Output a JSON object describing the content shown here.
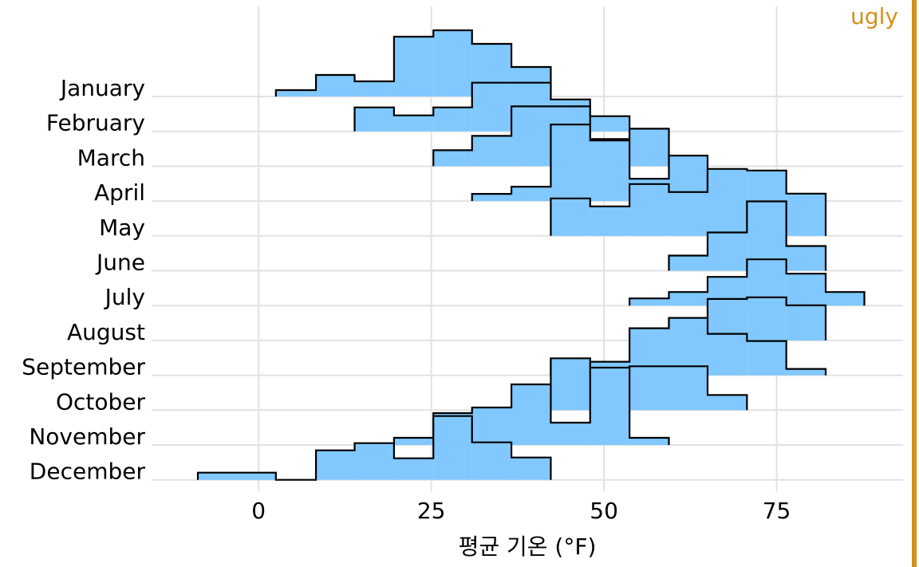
{
  "chart_data": {
    "type": "ridgeline-histogram",
    "corner_label": "ugly",
    "xlabel": "평균 기온 (°F)",
    "xlim": [
      -15.5,
      93.3
    ],
    "xticks": [
      0,
      25,
      50,
      75
    ],
    "grid": true,
    "color": "#80c8ff",
    "series": [
      {
        "name": "January",
        "bins": [
          2.5,
          8.3,
          13.9,
          19.6,
          25.3,
          30.9,
          36.6,
          42.3
        ],
        "values": [
          8,
          27,
          19,
          75,
          83,
          66,
          37
        ]
      },
      {
        "name": "February",
        "bins": [
          13.9,
          19.6,
          25.3,
          30.9,
          36.6,
          42.3,
          48,
          53.7
        ],
        "values": [
          30,
          20,
          30,
          61,
          61,
          40,
          19
        ]
      },
      {
        "name": "March",
        "bins": [
          25.3,
          30.9,
          36.6,
          42.3,
          48,
          53.7,
          59.4
        ],
        "values": [
          20,
          38,
          75,
          75,
          34,
          47
        ]
      },
      {
        "name": "April",
        "bins": [
          30.9,
          36.6,
          42.3,
          48,
          53.7,
          59.4,
          65
        ],
        "values": [
          9,
          18,
          96,
          76,
          28,
          57
        ]
      },
      {
        "name": "May",
        "bins": [
          42.3,
          48,
          53.7,
          59.4,
          65,
          70.7,
          76.4,
          82.1
        ],
        "values": [
          47,
          37,
          65,
          55,
          84,
          82,
          53
        ]
      },
      {
        "name": "June",
        "bins": [
          59.4,
          65,
          70.7,
          76.4,
          82.1
        ],
        "values": [
          19,
          48,
          87,
          31
        ]
      },
      {
        "name": "July",
        "bins": [
          53.7,
          59.4,
          65,
          70.7,
          76.4,
          82.1,
          87.7
        ],
        "values": [
          9,
          17,
          36,
          58,
          40,
          17
        ]
      },
      {
        "name": "August",
        "bins": [
          59.4,
          65,
          70.7,
          76.4,
          82.1
        ],
        "values": [
          27,
          52,
          54,
          44
        ]
      },
      {
        "name": "September",
        "bins": [
          42.3,
          48,
          53.7,
          59.4,
          65,
          70.7,
          76.4,
          82.1
        ],
        "values": [
          21,
          17,
          59,
          72,
          52,
          43,
          8
        ]
      },
      {
        "name": "October",
        "bins": [
          36.6,
          42.3,
          48,
          53.7,
          59.4,
          65,
          70.7
        ],
        "values": [
          32,
          65,
          53,
          55,
          55,
          19
        ]
      },
      {
        "name": "November",
        "bins": [
          19.6,
          25.3,
          30.9,
          36.6,
          42.3,
          48,
          53.7,
          59.4
        ],
        "values": [
          9,
          40,
          47,
          76,
          28,
          97,
          9
        ]
      },
      {
        "name": "December",
        "bins": [
          -8.8,
          -3.1,
          2.5,
          8.3,
          13.9,
          19.6,
          25.3,
          30.9,
          36.6,
          42.3
        ],
        "values": [
          9,
          9,
          0,
          37,
          46,
          27,
          80,
          47,
          28
        ]
      }
    ]
  }
}
